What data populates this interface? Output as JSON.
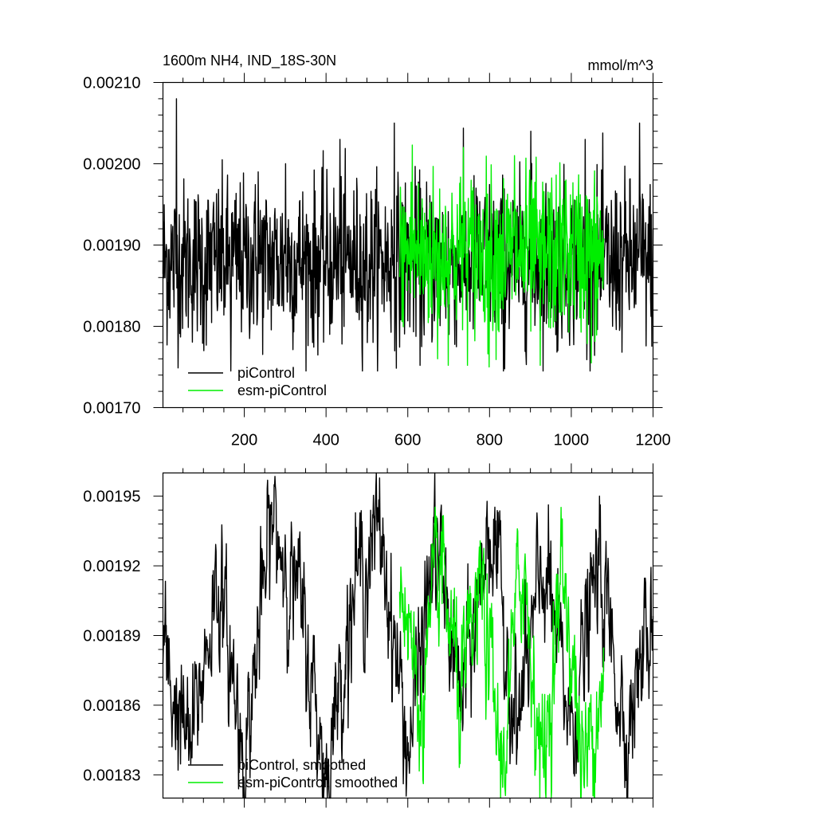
{
  "chart_data": [
    {
      "type": "line",
      "title": "1600m NH4, IND_18S-30N",
      "units": "mmol/m^3",
      "xlim": [
        1,
        1200
      ],
      "ylim": [
        0.0017,
        0.0021
      ],
      "x_ticks": [
        200,
        400,
        600,
        800,
        1000,
        1200
      ],
      "x_tick_labels": [
        "200",
        "400",
        "600",
        "800",
        "1000",
        "1200"
      ],
      "y_ticks": [
        0.0017,
        0.0018,
        0.0019,
        0.002,
        0.0021
      ],
      "y_tick_labels": [
        "0.00170",
        "0.00180",
        "0.00190",
        "0.00200",
        "0.00210"
      ],
      "legend_position": "bottom-left",
      "series": [
        {
          "name": "piControl",
          "color": "#000000",
          "x_range": [
            1,
            1200
          ],
          "mean": 0.00188,
          "std": 5e-05,
          "min": 0.001745,
          "max": 0.00208,
          "values": [
            0.00208,
            0.00177,
            0.001745,
            0.00199,
            0.002,
            0.00178,
            0.00203,
            0.00178,
            0.00205,
            0.001775,
            0.00179,
            0.00197,
            0.001745,
            0.00204,
            0.00177,
            0.00203,
            0.0018,
            0.00205
          ]
        },
        {
          "name": "esm-piControl",
          "color": "#00ee00",
          "x_range": [
            580,
            1080
          ],
          "mean": 0.00189,
          "std": 5e-05,
          "min": 0.001752,
          "max": 0.002023,
          "values": [
            0.002023,
            0.00176,
            0.00202,
            0.00175,
            0.00201,
            0.001752,
            0.00198,
            0.001755
          ]
        }
      ]
    },
    {
      "type": "line",
      "xlim": [
        1,
        1200
      ],
      "ylim": [
        0.00182,
        0.00196
      ],
      "y_ticks": [
        0.00183,
        0.00186,
        0.00189,
        0.00192,
        0.00195
      ],
      "y_tick_labels": [
        "0.00183",
        "0.00186",
        "0.00189",
        "0.00192",
        "0.00195"
      ],
      "legend_position": "bottom-left",
      "series": [
        {
          "name": "piControl, smoothed",
          "color": "#000000",
          "x_range": [
            1,
            1200
          ],
          "values": [
            0.00188,
            0.00184,
            0.001915,
            0.001837,
            0.00194,
            0.001905,
            0.00183,
            0.00191,
            0.001935,
            0.00184,
            0.00193,
            0.00186,
            0.00194,
            0.00185,
            0.00192,
            0.00185,
            0.00192,
            0.00185,
            0.0019
          ]
        },
        {
          "name": "esm-piControl, smoothed",
          "color": "#00ee00",
          "x_range": [
            580,
            1080
          ],
          "values": [
            0.001922,
            0.001858,
            0.00192,
            0.00186,
            0.00191,
            0.00183,
            0.001925,
            0.001832,
            0.00192,
            0.00183,
            0.00188
          ]
        }
      ]
    }
  ]
}
